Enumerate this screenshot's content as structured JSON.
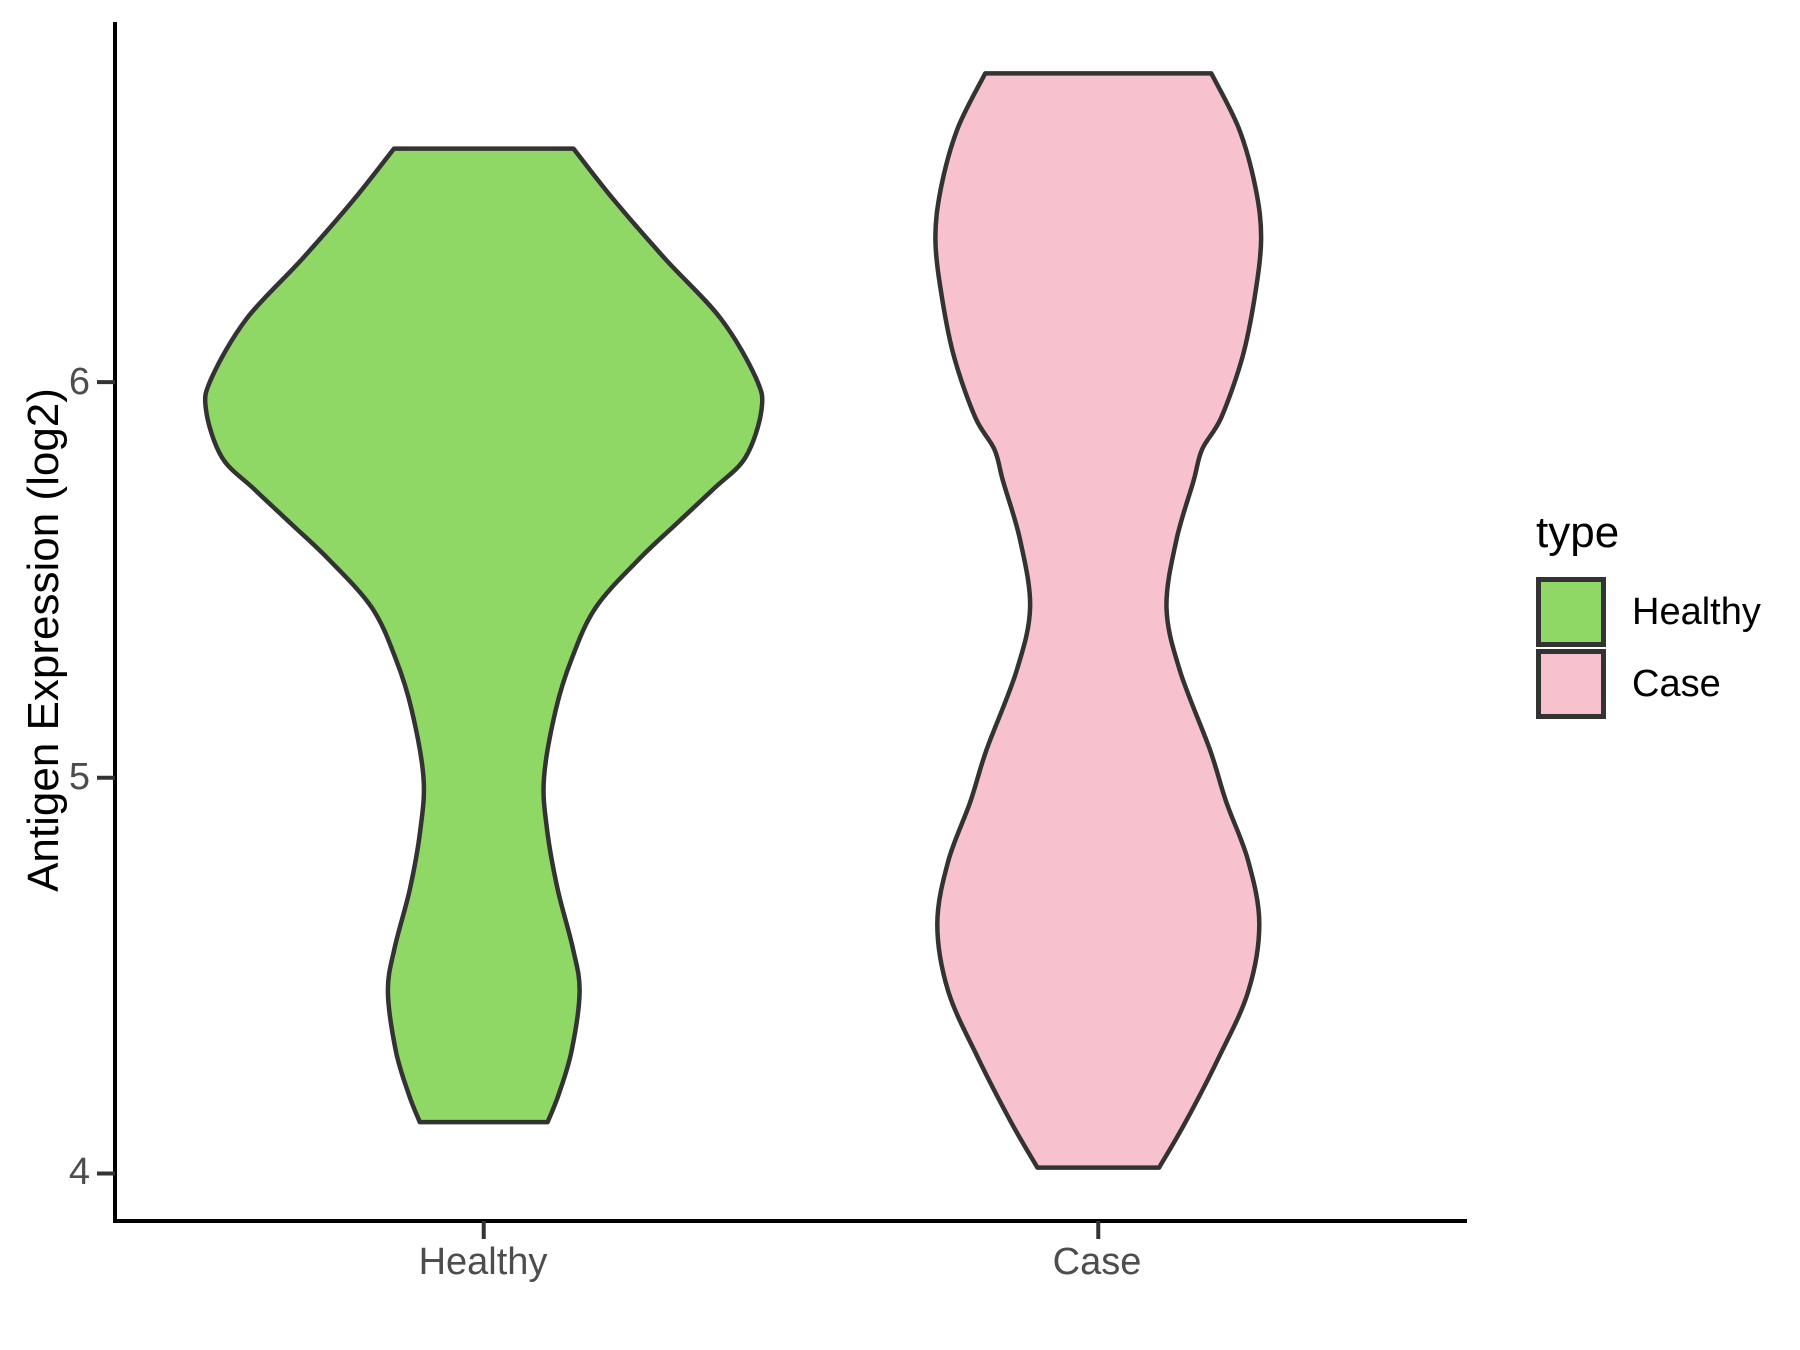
{
  "chart_data": {
    "type": "violin",
    "title": "",
    "xlabel": "",
    "ylabel": "Antigen Expression (log2)",
    "categories": [
      "Healthy",
      "Case"
    ],
    "yticks": [
      "4",
      "5",
      "6"
    ],
    "ytick_values": [
      4,
      5,
      6
    ],
    "ylim": [
      3.88,
      6.91
    ],
    "x_positions": [
      1,
      2
    ],
    "xlim": [
      0.4,
      2.6
    ],
    "grid": "off",
    "background": "#ffffff",
    "axis_color": "#000000",
    "tick_color": "#333333",
    "tick_label_color": "#4d4d4d",
    "legend": {
      "title": "type",
      "position": "right",
      "entries": [
        {
          "label": "Healthy",
          "color": "#90D866"
        },
        {
          "label": "Case",
          "color": "#F7C1CD"
        }
      ]
    },
    "series": [
      {
        "name": "Healthy",
        "x": 1,
        "fill": "#90D866",
        "stroke": "#333333",
        "profile": [
          [
            6.59,
            0.146
          ],
          [
            6.46,
            0.212
          ],
          [
            6.31,
            0.296
          ],
          [
            6.16,
            0.386
          ],
          [
            6.01,
            0.443
          ],
          [
            5.93,
            0.452
          ],
          [
            5.81,
            0.426
          ],
          [
            5.73,
            0.374
          ],
          [
            5.64,
            0.312
          ],
          [
            5.55,
            0.251
          ],
          [
            5.43,
            0.182
          ],
          [
            5.3,
            0.143
          ],
          [
            5.17,
            0.117
          ],
          [
            5.0,
            0.098
          ],
          [
            4.87,
            0.103
          ],
          [
            4.72,
            0.12
          ],
          [
            4.57,
            0.145
          ],
          [
            4.46,
            0.156
          ],
          [
            4.31,
            0.143
          ],
          [
            4.2,
            0.122
          ],
          [
            4.13,
            0.104
          ]
        ]
      },
      {
        "name": "Case",
        "x": 2,
        "fill": "#F7C1CD",
        "stroke": "#333333",
        "profile": [
          [
            6.78,
            0.184
          ],
          [
            6.64,
            0.229
          ],
          [
            6.49,
            0.256
          ],
          [
            6.36,
            0.265
          ],
          [
            6.21,
            0.254
          ],
          [
            6.06,
            0.234
          ],
          [
            5.91,
            0.2
          ],
          [
            5.83,
            0.169
          ],
          [
            5.75,
            0.155
          ],
          [
            5.6,
            0.127
          ],
          [
            5.43,
            0.111
          ],
          [
            5.27,
            0.133
          ],
          [
            5.07,
            0.182
          ],
          [
            4.94,
            0.208
          ],
          [
            4.79,
            0.244
          ],
          [
            4.63,
            0.262
          ],
          [
            4.46,
            0.244
          ],
          [
            4.29,
            0.195
          ],
          [
            4.13,
            0.142
          ],
          [
            4.015,
            0.099
          ]
        ]
      }
    ]
  }
}
